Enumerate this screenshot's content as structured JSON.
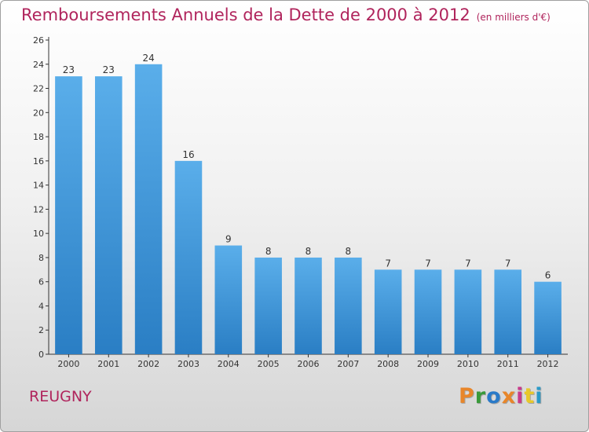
{
  "header": {
    "title": "Remboursements Annuels de la Dette de 2000 à 2012",
    "unit": "(en milliers d'€)"
  },
  "footer": {
    "commune": "REUGNY",
    "logo_text": "Proxiti",
    "logo_colors": [
      "#e8862a",
      "#3a9a3a",
      "#2a7ac8",
      "#e8862a",
      "#c83a8a",
      "#e8c82a",
      "#2a9ac8"
    ]
  },
  "chart_data": {
    "type": "bar",
    "title": "Remboursements Annuels de la Dette de 2000 à 2012",
    "xlabel": "",
    "ylabel": "",
    "categories": [
      "2000",
      "2001",
      "2002",
      "2003",
      "2004",
      "2005",
      "2006",
      "2007",
      "2008",
      "2009",
      "2010",
      "2011",
      "2012"
    ],
    "values": [
      23,
      23,
      24,
      16,
      9,
      8,
      8,
      8,
      7,
      7,
      7,
      7,
      6
    ],
    "ylim": [
      0,
      26
    ],
    "yticks": [
      0,
      2,
      4,
      6,
      8,
      10,
      12,
      14,
      16,
      18,
      20,
      22,
      24,
      26
    ],
    "bar_color_top": "#5aaeea",
    "bar_color_bottom": "#2a7ec4",
    "grid": false,
    "legend": "none"
  }
}
